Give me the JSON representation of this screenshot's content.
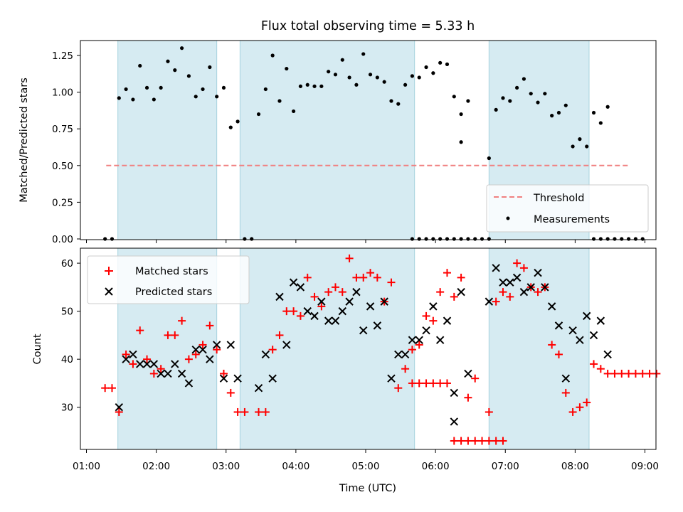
{
  "chart_data": [
    {
      "type": "scatter",
      "title": "Flux total observing time = 5.33 h",
      "xlabel": "",
      "ylabel": "Matched/Predicted stars",
      "xlim": [
        "01:00",
        "09:00"
      ],
      "ylim": [
        0,
        1.37
      ],
      "x_ticks": [
        "01:00",
        "02:00",
        "03:00",
        "04:00",
        "05:00",
        "06:00",
        "07:00",
        "08:00",
        "09:00"
      ],
      "y_ticks": [
        "0.00",
        "0.25",
        "0.50",
        "0.75",
        "1.00",
        "1.25"
      ],
      "legend": {
        "position": "lower-right",
        "entries": [
          "Threshold",
          "Measurements"
        ]
      },
      "shaded_intervals": [
        [
          "01:27",
          "02:52"
        ],
        [
          "03:12",
          "05:42"
        ],
        [
          "06:46",
          "08:12"
        ]
      ],
      "threshold": {
        "name": "Threshold",
        "value": 0.5,
        "x_range": [
          "01:17",
          "08:47"
        ],
        "color": "#f08080"
      },
      "series": [
        {
          "name": "Measurements",
          "color": "#000000",
          "points": [
            [
              "01:16",
              0
            ],
            [
              "01:22",
              0
            ],
            [
              "01:28",
              0.96
            ],
            [
              "01:34",
              1.02
            ],
            [
              "01:40",
              0.95
            ],
            [
              "01:46",
              1.18
            ],
            [
              "01:52",
              1.03
            ],
            [
              "01:58",
              0.95
            ],
            [
              "02:04",
              1.03
            ],
            [
              "02:10",
              1.21
            ],
            [
              "02:16",
              1.15
            ],
            [
              "02:22",
              1.3
            ],
            [
              "02:28",
              1.11
            ],
            [
              "02:34",
              0.97
            ],
            [
              "02:40",
              1.02
            ],
            [
              "02:46",
              1.17
            ],
            [
              "02:52",
              0.97
            ],
            [
              "02:58",
              1.03
            ],
            [
              "03:04",
              0.76
            ],
            [
              "03:10",
              0.8
            ],
            [
              "03:16",
              0
            ],
            [
              "03:22",
              0
            ],
            [
              "03:28",
              0.85
            ],
            [
              "03:34",
              1.02
            ],
            [
              "03:40",
              1.25
            ],
            [
              "03:46",
              0.94
            ],
            [
              "03:52",
              1.16
            ],
            [
              "03:58",
              0.87
            ],
            [
              "04:04",
              1.04
            ],
            [
              "04:10",
              1.05
            ],
            [
              "04:16",
              1.04
            ],
            [
              "04:22",
              1.04
            ],
            [
              "04:28",
              1.14
            ],
            [
              "04:34",
              1.12
            ],
            [
              "04:40",
              1.22
            ],
            [
              "04:46",
              1.1
            ],
            [
              "04:52",
              1.05
            ],
            [
              "04:58",
              1.26
            ],
            [
              "05:04",
              1.12
            ],
            [
              "05:10",
              1.1
            ],
            [
              "05:16",
              1.07
            ],
            [
              "05:22",
              0.94
            ],
            [
              "05:28",
              0.92
            ],
            [
              "05:34",
              1.05
            ],
            [
              "05:40",
              1.11
            ],
            [
              "05:46",
              1.1
            ],
            [
              "05:52",
              1.17
            ],
            [
              "05:58",
              1.13
            ],
            [
              "06:04",
              1.2
            ],
            [
              "06:10",
              1.19
            ],
            [
              "06:16",
              0.97
            ],
            [
              "06:22",
              0.66
            ],
            [
              "06:28",
              0.94
            ],
            [
              "05:40",
              0
            ],
            [
              "05:46",
              0
            ],
            [
              "05:52",
              0
            ],
            [
              "05:58",
              0
            ],
            [
              "06:04",
              0
            ],
            [
              "06:10",
              0
            ],
            [
              "06:22",
              0.85
            ],
            [
              "06:16",
              0
            ],
            [
              "06:22",
              0
            ],
            [
              "06:28",
              0
            ],
            [
              "06:34",
              0
            ],
            [
              "06:40",
              0
            ],
            [
              "06:46",
              0
            ],
            [
              "06:46",
              0.55
            ],
            [
              "06:52",
              0.88
            ],
            [
              "06:58",
              0.96
            ],
            [
              "07:04",
              0.94
            ],
            [
              "07:10",
              1.03
            ],
            [
              "07:16",
              1.09
            ],
            [
              "07:22",
              0.99
            ],
            [
              "07:28",
              0.93
            ],
            [
              "07:34",
              0.99
            ],
            [
              "07:40",
              0.84
            ],
            [
              "07:46",
              0.86
            ],
            [
              "07:52",
              0.91
            ],
            [
              "07:58",
              0.63
            ],
            [
              "08:04",
              0.68
            ],
            [
              "08:10",
              0.63
            ],
            [
              "08:16",
              0.86
            ],
            [
              "08:22",
              0.79
            ],
            [
              "08:28",
              0.9
            ],
            [
              "08:16",
              0
            ],
            [
              "08:22",
              0
            ],
            [
              "08:28",
              0
            ],
            [
              "08:34",
              0
            ],
            [
              "08:40",
              0
            ],
            [
              "08:46",
              0
            ],
            [
              "08:52",
              0
            ],
            [
              "08:58",
              0
            ]
          ]
        }
      ]
    },
    {
      "type": "scatter",
      "title": "",
      "xlabel": "Time (UTC)",
      "ylabel": "Count",
      "xlim": [
        "01:00",
        "09:00"
      ],
      "ylim": [
        21,
        63
      ],
      "x_ticks": [
        "01:00",
        "02:00",
        "03:00",
        "04:00",
        "05:00",
        "06:00",
        "07:00",
        "08:00",
        "09:00"
      ],
      "y_ticks": [
        "30",
        "40",
        "50",
        "60"
      ],
      "legend": {
        "position": "upper-left",
        "entries": [
          "Matched stars",
          "Predicted stars"
        ]
      },
      "shaded_intervals": [
        [
          "01:27",
          "02:52"
        ],
        [
          "03:12",
          "05:42"
        ],
        [
          "06:46",
          "08:12"
        ]
      ],
      "series": [
        {
          "name": "Matched stars",
          "color": "#ff0000",
          "marker": "+",
          "points": [
            [
              "01:16",
              34
            ],
            [
              "01:22",
              34
            ],
            [
              "01:28",
              29
            ],
            [
              "01:34",
              41
            ],
            [
              "01:40",
              39
            ],
            [
              "01:46",
              46
            ],
            [
              "01:52",
              40
            ],
            [
              "01:58",
              37
            ],
            [
              "02:04",
              38
            ],
            [
              "02:10",
              45
            ],
            [
              "02:16",
              45
            ],
            [
              "02:22",
              48
            ],
            [
              "02:28",
              40
            ],
            [
              "02:34",
              41
            ],
            [
              "02:40",
              43
            ],
            [
              "02:46",
              47
            ],
            [
              "02:52",
              42
            ],
            [
              "02:58",
              37
            ],
            [
              "03:04",
              33
            ],
            [
              "03:10",
              29
            ],
            [
              "03:16",
              29
            ],
            [
              "03:28",
              29
            ],
            [
              "03:34",
              29
            ],
            [
              "03:40",
              42
            ],
            [
              "03:46",
              45
            ],
            [
              "03:52",
              50
            ],
            [
              "03:58",
              50
            ],
            [
              "04:04",
              49
            ],
            [
              "04:10",
              57
            ],
            [
              "04:16",
              53
            ],
            [
              "04:22",
              51
            ],
            [
              "04:28",
              54
            ],
            [
              "04:34",
              55
            ],
            [
              "04:40",
              54
            ],
            [
              "04:46",
              61
            ],
            [
              "04:52",
              57
            ],
            [
              "04:58",
              57
            ],
            [
              "05:04",
              58
            ],
            [
              "05:10",
              57
            ],
            [
              "05:16",
              52
            ],
            [
              "05:22",
              56
            ],
            [
              "05:28",
              34
            ],
            [
              "05:34",
              38
            ],
            [
              "05:40",
              42
            ],
            [
              "05:46",
              43
            ],
            [
              "05:52",
              49
            ],
            [
              "05:58",
              48
            ],
            [
              "06:04",
              54
            ],
            [
              "06:10",
              58
            ],
            [
              "06:16",
              53
            ],
            [
              "06:22",
              57
            ],
            [
              "06:28",
              32
            ],
            [
              "06:34",
              36
            ],
            [
              "05:40",
              35
            ],
            [
              "05:46",
              35
            ],
            [
              "05:52",
              35
            ],
            [
              "05:58",
              35
            ],
            [
              "06:04",
              35
            ],
            [
              "06:10",
              35
            ],
            [
              "06:16",
              23
            ],
            [
              "06:22",
              23
            ],
            [
              "06:28",
              23
            ],
            [
              "06:34",
              23
            ],
            [
              "06:40",
              23
            ],
            [
              "06:46",
              23
            ],
            [
              "06:52",
              23
            ],
            [
              "06:58",
              23
            ],
            [
              "06:46",
              29
            ],
            [
              "06:52",
              52
            ],
            [
              "06:58",
              54
            ],
            [
              "07:04",
              53
            ],
            [
              "07:10",
              60
            ],
            [
              "07:16",
              59
            ],
            [
              "07:22",
              55
            ],
            [
              "07:28",
              54
            ],
            [
              "07:34",
              55
            ],
            [
              "07:40",
              43
            ],
            [
              "07:46",
              41
            ],
            [
              "07:52",
              33
            ],
            [
              "07:58",
              29
            ],
            [
              "08:04",
              30
            ],
            [
              "08:10",
              31
            ],
            [
              "08:16",
              39
            ],
            [
              "08:22",
              38
            ],
            [
              "08:28",
              37
            ],
            [
              "08:34",
              37
            ],
            [
              "08:40",
              37
            ],
            [
              "08:46",
              37
            ],
            [
              "08:52",
              37
            ],
            [
              "08:58",
              37
            ],
            [
              "09:04",
              37
            ],
            [
              "09:10",
              37
            ]
          ]
        },
        {
          "name": "Predicted stars",
          "color": "#000000",
          "marker": "x",
          "points": [
            [
              "01:28",
              30
            ],
            [
              "01:34",
              40
            ],
            [
              "01:40",
              41
            ],
            [
              "01:46",
              39
            ],
            [
              "01:52",
              39
            ],
            [
              "01:58",
              39
            ],
            [
              "02:04",
              37
            ],
            [
              "02:10",
              37
            ],
            [
              "02:16",
              39
            ],
            [
              "02:22",
              37
            ],
            [
              "02:28",
              35
            ],
            [
              "02:34",
              42
            ],
            [
              "02:40",
              42
            ],
            [
              "02:46",
              40
            ],
            [
              "02:52",
              43
            ],
            [
              "02:58",
              36
            ],
            [
              "03:04",
              43
            ],
            [
              "03:10",
              36
            ],
            [
              "03:28",
              34
            ],
            [
              "03:34",
              41
            ],
            [
              "03:40",
              36
            ],
            [
              "03:46",
              53
            ],
            [
              "03:52",
              43
            ],
            [
              "03:58",
              56
            ],
            [
              "04:04",
              55
            ],
            [
              "04:10",
              50
            ],
            [
              "04:16",
              49
            ],
            [
              "04:22",
              52
            ],
            [
              "04:28",
              48
            ],
            [
              "04:34",
              48
            ],
            [
              "04:40",
              50
            ],
            [
              "04:46",
              52
            ],
            [
              "04:52",
              54
            ],
            [
              "04:58",
              46
            ],
            [
              "05:04",
              51
            ],
            [
              "05:10",
              47
            ],
            [
              "05:16",
              52
            ],
            [
              "05:22",
              36
            ],
            [
              "05:28",
              41
            ],
            [
              "05:34",
              41
            ],
            [
              "05:40",
              44
            ],
            [
              "05:46",
              44
            ],
            [
              "05:52",
              46
            ],
            [
              "05:58",
              51
            ],
            [
              "06:04",
              44
            ],
            [
              "06:10",
              48
            ],
            [
              "06:16",
              33
            ],
            [
              "06:22",
              54
            ],
            [
              "06:28",
              37
            ],
            [
              "06:16",
              27
            ],
            [
              "06:46",
              52
            ],
            [
              "06:52",
              59
            ],
            [
              "06:58",
              56
            ],
            [
              "07:04",
              56
            ],
            [
              "07:10",
              57
            ],
            [
              "07:16",
              54
            ],
            [
              "07:22",
              55
            ],
            [
              "07:28",
              58
            ],
            [
              "07:34",
              55
            ],
            [
              "07:40",
              51
            ],
            [
              "07:46",
              47
            ],
            [
              "07:52",
              36
            ],
            [
              "07:58",
              46
            ],
            [
              "08:04",
              44
            ],
            [
              "08:10",
              49
            ],
            [
              "08:16",
              45
            ],
            [
              "08:22",
              48
            ],
            [
              "08:28",
              41
            ]
          ]
        }
      ]
    }
  ]
}
